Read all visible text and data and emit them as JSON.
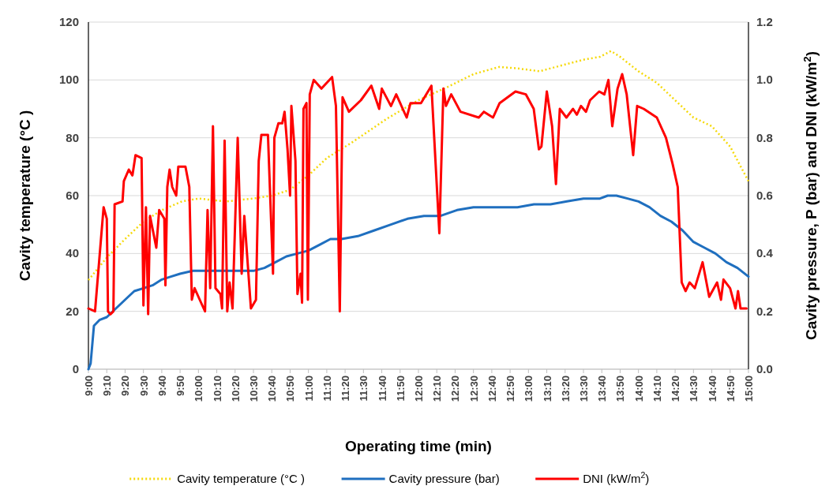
{
  "chart_data": {
    "type": "line",
    "xlabel": "Operating time (min)",
    "ylabel": "Cavity temperature (°C )",
    "y2label": "Cavity pressure, P (bar) and DNI (kW/m$^{2}$)",
    "xlim": [
      9,
      15
    ],
    "xticks": [
      {
        "value": 9,
        "label": "9:00"
      },
      {
        "value": 9.1667,
        "label": "9:10"
      },
      {
        "value": 9.3333,
        "label": "9:20"
      },
      {
        "value": 9.5,
        "label": "9:30"
      },
      {
        "value": 9.6667,
        "label": "9:40"
      },
      {
        "value": 9.8333,
        "label": "9:50"
      },
      {
        "value": 10,
        "label": "10:00"
      },
      {
        "value": 10.1667,
        "label": "10:10"
      },
      {
        "value": 10.3333,
        "label": "10:20"
      },
      {
        "value": 10.5,
        "label": "10:30"
      },
      {
        "value": 10.6667,
        "label": "10:40"
      },
      {
        "value": 10.8333,
        "label": "10:50"
      },
      {
        "value": 11,
        "label": "11:00"
      },
      {
        "value": 11.1667,
        "label": "11:10"
      },
      {
        "value": 11.3333,
        "label": "11:20"
      },
      {
        "value": 11.5,
        "label": "11:30"
      },
      {
        "value": 11.6667,
        "label": "11:40"
      },
      {
        "value": 11.8333,
        "label": "11:50"
      },
      {
        "value": 12,
        "label": "12:00"
      },
      {
        "value": 12.1667,
        "label": "12:10"
      },
      {
        "value": 12.3333,
        "label": "12:20"
      },
      {
        "value": 12.5,
        "label": "12:30"
      },
      {
        "value": 12.6667,
        "label": "12:40"
      },
      {
        "value": 12.8333,
        "label": "12:50"
      },
      {
        "value": 13,
        "label": "13:00"
      },
      {
        "value": 13.1667,
        "label": "13:10"
      },
      {
        "value": 13.3333,
        "label": "13:20"
      },
      {
        "value": 13.5,
        "label": "13:30"
      },
      {
        "value": 13.6667,
        "label": "13:40"
      },
      {
        "value": 13.8333,
        "label": "13:50"
      },
      {
        "value": 14,
        "label": "14:00"
      },
      {
        "value": 14.1667,
        "label": "14:10"
      },
      {
        "value": 14.3333,
        "label": "14:20"
      },
      {
        "value": 14.5,
        "label": "14:30"
      },
      {
        "value": 14.6667,
        "label": "14:40"
      },
      {
        "value": 14.8333,
        "label": "14:50"
      },
      {
        "value": 15,
        "label": "15:00"
      }
    ],
    "ylim": [
      0,
      120
    ],
    "yticks": [
      0,
      20,
      40,
      60,
      80,
      100,
      120
    ],
    "y2lim": [
      0,
      1.2
    ],
    "y2ticks": [
      {
        "value": 0,
        "label": "0.0"
      },
      {
        "value": 0.2,
        "label": "0.2"
      },
      {
        "value": 0.4,
        "label": "0.4"
      },
      {
        "value": 0.6,
        "label": "0.6"
      },
      {
        "value": 0.8,
        "label": "0.8"
      },
      {
        "value": 1,
        "label": "1.0"
      },
      {
        "value": 1.2,
        "label": "1.2"
      }
    ],
    "grid": "y",
    "legend": "bottom",
    "series": [
      {
        "name": "Cavity temperature (°C )",
        "color": "#f5d90a",
        "line_style": "dotted",
        "x": [
          9,
          9.167,
          9.333,
          9.5,
          9.667,
          9.85,
          10,
          10.25,
          10.5,
          10.667,
          10.833,
          11,
          11.167,
          11.4,
          11.717,
          12,
          12.267,
          12.5,
          12.733,
          12.9,
          13.1,
          13.3,
          13.5,
          13.65,
          13.75,
          13.833,
          14,
          14.167,
          14.333,
          14.5,
          14.667,
          14.833,
          15
        ],
        "values": [
          30.8,
          38.6,
          45,
          51,
          55,
          58,
          59,
          58,
          59,
          60,
          62,
          67,
          73,
          78.5,
          86.7,
          93,
          97.6,
          102,
          104.5,
          104,
          103,
          105,
          107,
          108,
          110,
          108,
          103,
          99,
          93,
          87,
          84,
          77,
          65
        ]
      },
      {
        "name": "Cavity pressure (bar)",
        "color": "#1f6fbf",
        "line_style": "solid",
        "axis": "y2",
        "x": [
          9,
          9.02,
          9.05,
          9.1,
          9.167,
          9.25,
          9.333,
          9.417,
          9.5,
          9.583,
          9.667,
          9.75,
          9.833,
          9.95,
          10.5,
          10.6,
          10.7,
          10.8,
          10.9,
          11,
          11.1,
          11.2,
          11.3,
          11.45,
          11.6,
          11.75,
          11.9,
          12.05,
          12.2,
          12.35,
          12.5,
          12.7,
          12.9,
          13.05,
          13.2,
          13.35,
          13.5,
          13.65,
          13.72,
          13.8,
          13.9,
          14,
          14.1,
          14.2,
          14.3,
          14.4,
          14.5,
          14.6,
          14.7,
          14.8,
          14.9,
          15
        ],
        "values": [
          0,
          0.02,
          0.15,
          0.17,
          0.18,
          0.21,
          0.24,
          0.27,
          0.28,
          0.29,
          0.31,
          0.32,
          0.33,
          0.34,
          0.34,
          0.35,
          0.37,
          0.39,
          0.4,
          0.41,
          0.43,
          0.45,
          0.45,
          0.46,
          0.48,
          0.5,
          0.52,
          0.53,
          0.53,
          0.55,
          0.56,
          0.56,
          0.56,
          0.57,
          0.57,
          0.58,
          0.59,
          0.59,
          0.6,
          0.6,
          0.59,
          0.58,
          0.56,
          0.53,
          0.51,
          0.48,
          0.44,
          0.42,
          0.4,
          0.37,
          0.35,
          0.32
        ]
      },
      {
        "name": "DNI (kW/m$^{2}$)",
        "color": "#ff0000",
        "line_style": "solid",
        "axis": "y2",
        "x": [
          9,
          9.06,
          9.138,
          9.167,
          9.178,
          9.2,
          9.227,
          9.238,
          9.31,
          9.322,
          9.367,
          9.4,
          9.428,
          9.483,
          9.5,
          9.523,
          9.543,
          9.56,
          9.617,
          9.643,
          9.69,
          9.7,
          9.717,
          9.738,
          9.762,
          9.798,
          9.817,
          9.882,
          9.917,
          9.94,
          9.965,
          10.012,
          10.06,
          10.083,
          10.107,
          10.132,
          10.155,
          10.2,
          10.215,
          10.238,
          10.262,
          10.283,
          10.31,
          10.357,
          10.393,
          10.417,
          10.477,
          10.523,
          10.548,
          10.572,
          10.632,
          10.678,
          10.69,
          10.727,
          10.762,
          10.783,
          10.81,
          10.833,
          10.845,
          10.882,
          10.9,
          10.928,
          10.942,
          10.955,
          10.982,
          10.995,
          11.012,
          11.048,
          11.118,
          11.215,
          11.25,
          11.285,
          11.31,
          11.368,
          11.477,
          11.572,
          11.643,
          11.667,
          11.75,
          11.798,
          11.893,
          11.928,
          12.023,
          12.118,
          12.19,
          12.227,
          12.25,
          12.298,
          12.382,
          12.548,
          12.595,
          12.678,
          12.738,
          12.882,
          12.977,
          13.048,
          13.095,
          13.118,
          13.167,
          13.215,
          13.25,
          13.285,
          13.345,
          13.405,
          13.44,
          13.477,
          13.523,
          13.56,
          13.643,
          13.69,
          13.727,
          13.762,
          13.81,
          13.852,
          13.893,
          13.952,
          13.988,
          14.048,
          14.167,
          14.25,
          14.31,
          14.357,
          14.393,
          14.428,
          14.465,
          14.512,
          14.583,
          14.643,
          14.715,
          14.75,
          14.773,
          14.833,
          14.882,
          14.905,
          14.928,
          14.982
        ],
        "values": [
          0.21,
          0.2,
          0.56,
          0.52,
          0.2,
          0.19,
          0.2,
          0.57,
          0.58,
          0.65,
          0.69,
          0.67,
          0.74,
          0.73,
          0.22,
          0.56,
          0.19,
          0.53,
          0.42,
          0.55,
          0.52,
          0.29,
          0.63,
          0.69,
          0.63,
          0.6,
          0.7,
          0.7,
          0.63,
          0.24,
          0.28,
          0.24,
          0.2,
          0.55,
          0.28,
          0.84,
          0.28,
          0.26,
          0.21,
          0.79,
          0.2,
          0.3,
          0.21,
          0.8,
          0.33,
          0.53,
          0.21,
          0.24,
          0.72,
          0.81,
          0.81,
          0.33,
          0.8,
          0.85,
          0.85,
          0.89,
          0.76,
          0.6,
          0.91,
          0.72,
          0.26,
          0.33,
          0.23,
          0.9,
          0.92,
          0.24,
          0.95,
          1,
          0.97,
          1.01,
          0.91,
          0.2,
          0.94,
          0.89,
          0.93,
          0.98,
          0.9,
          0.97,
          0.91,
          0.95,
          0.87,
          0.92,
          0.92,
          0.98,
          0.47,
          0.97,
          0.91,
          0.95,
          0.89,
          0.87,
          0.89,
          0.87,
          0.92,
          0.96,
          0.95,
          0.9,
          0.76,
          0.77,
          0.96,
          0.84,
          0.64,
          0.9,
          0.87,
          0.9,
          0.88,
          0.91,
          0.89,
          0.93,
          0.96,
          0.95,
          1,
          0.84,
          0.97,
          1.02,
          0.95,
          0.74,
          0.91,
          0.9,
          0.87,
          0.8,
          0.71,
          0.63,
          0.3,
          0.27,
          0.3,
          0.28,
          0.37,
          0.25,
          0.3,
          0.24,
          0.31,
          0.28,
          0.21,
          0.27,
          0.21,
          0.21
        ]
      }
    ]
  }
}
